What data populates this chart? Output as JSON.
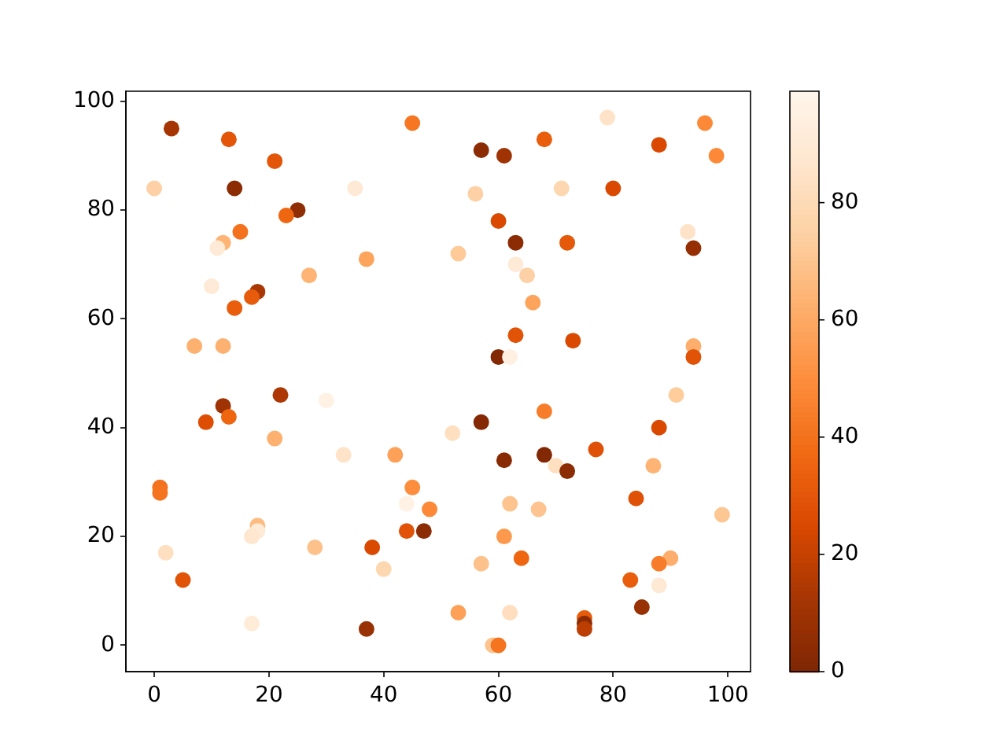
{
  "chart_data": {
    "type": "scatter",
    "marker": "circle",
    "x": [
      3,
      13,
      21,
      0,
      14,
      25,
      23,
      15,
      12,
      11,
      27,
      10,
      18,
      17,
      14,
      7,
      12,
      45,
      68,
      57,
      61,
      35,
      56,
      60,
      63,
      37,
      53,
      63,
      65,
      66,
      63,
      60,
      62,
      79,
      96,
      88,
      98,
      71,
      80,
      93,
      94,
      72,
      73,
      94,
      94,
      12,
      22,
      30,
      9,
      13,
      21,
      1,
      1,
      18,
      18,
      17,
      2,
      28,
      5,
      17,
      57,
      52,
      33,
      42,
      61,
      45,
      44,
      48,
      44,
      47,
      62,
      67,
      38,
      40,
      61,
      57,
      64,
      53,
      62,
      37,
      59,
      60,
      91,
      68,
      88,
      68,
      70,
      72,
      77,
      87,
      84,
      99,
      90,
      88,
      83,
      88,
      85,
      75,
      75,
      75
    ],
    "values": [
      95,
      93,
      89,
      84,
      84,
      80,
      79,
      76,
      74,
      73,
      68,
      66,
      65,
      64,
      62,
      55,
      55,
      96,
      93,
      91,
      90,
      84,
      83,
      78,
      74,
      71,
      72,
      70,
      68,
      63,
      57,
      53,
      53,
      97,
      96,
      92,
      90,
      84,
      84,
      76,
      73,
      74,
      56,
      55,
      53,
      44,
      46,
      45,
      41,
      42,
      38,
      29,
      28,
      22,
      21,
      20,
      17,
      18,
      12,
      4,
      41,
      39,
      35,
      35,
      34,
      29,
      26,
      25,
      21,
      21,
      26,
      25,
      18,
      14,
      20,
      15,
      16,
      6,
      6,
      3,
      0,
      0,
      46,
      43,
      40,
      35,
      33,
      32,
      36,
      33,
      27,
      24,
      16,
      15,
      12,
      11,
      7,
      5,
      4,
      3
    ],
    "cvalues": [
      12,
      30,
      30,
      75,
      4,
      5,
      36,
      40,
      64,
      90,
      64,
      90,
      13,
      32,
      33,
      63,
      63,
      42,
      33,
      4,
      10,
      89,
      75,
      25,
      4,
      58,
      72,
      90,
      75,
      58,
      29,
      1,
      95,
      85,
      48,
      25,
      48,
      78,
      25,
      85,
      7,
      31,
      25,
      62,
      29,
      10,
      14,
      96,
      27,
      36,
      63,
      40,
      41,
      67,
      90,
      87,
      83,
      69,
      29,
      91,
      2,
      83,
      85,
      57,
      3,
      50,
      96,
      48,
      29,
      4,
      70,
      70,
      25,
      78,
      54,
      69,
      36,
      57,
      82,
      8,
      70,
      41,
      73,
      44,
      25,
      1,
      83,
      4,
      28,
      64,
      28,
      71,
      62,
      44,
      33,
      89,
      8,
      32,
      4,
      18
    ],
    "clim": [
      0,
      99
    ],
    "cticks": [
      0,
      20,
      40,
      60,
      80
    ],
    "xlim": [
      -4.95,
      103.95
    ],
    "xticks": [
      0,
      20,
      40,
      60,
      80,
      100
    ],
    "ylim": [
      -4.85,
      101.85
    ],
    "yticks": [
      0,
      20,
      40,
      60,
      80,
      100
    ]
  }
}
